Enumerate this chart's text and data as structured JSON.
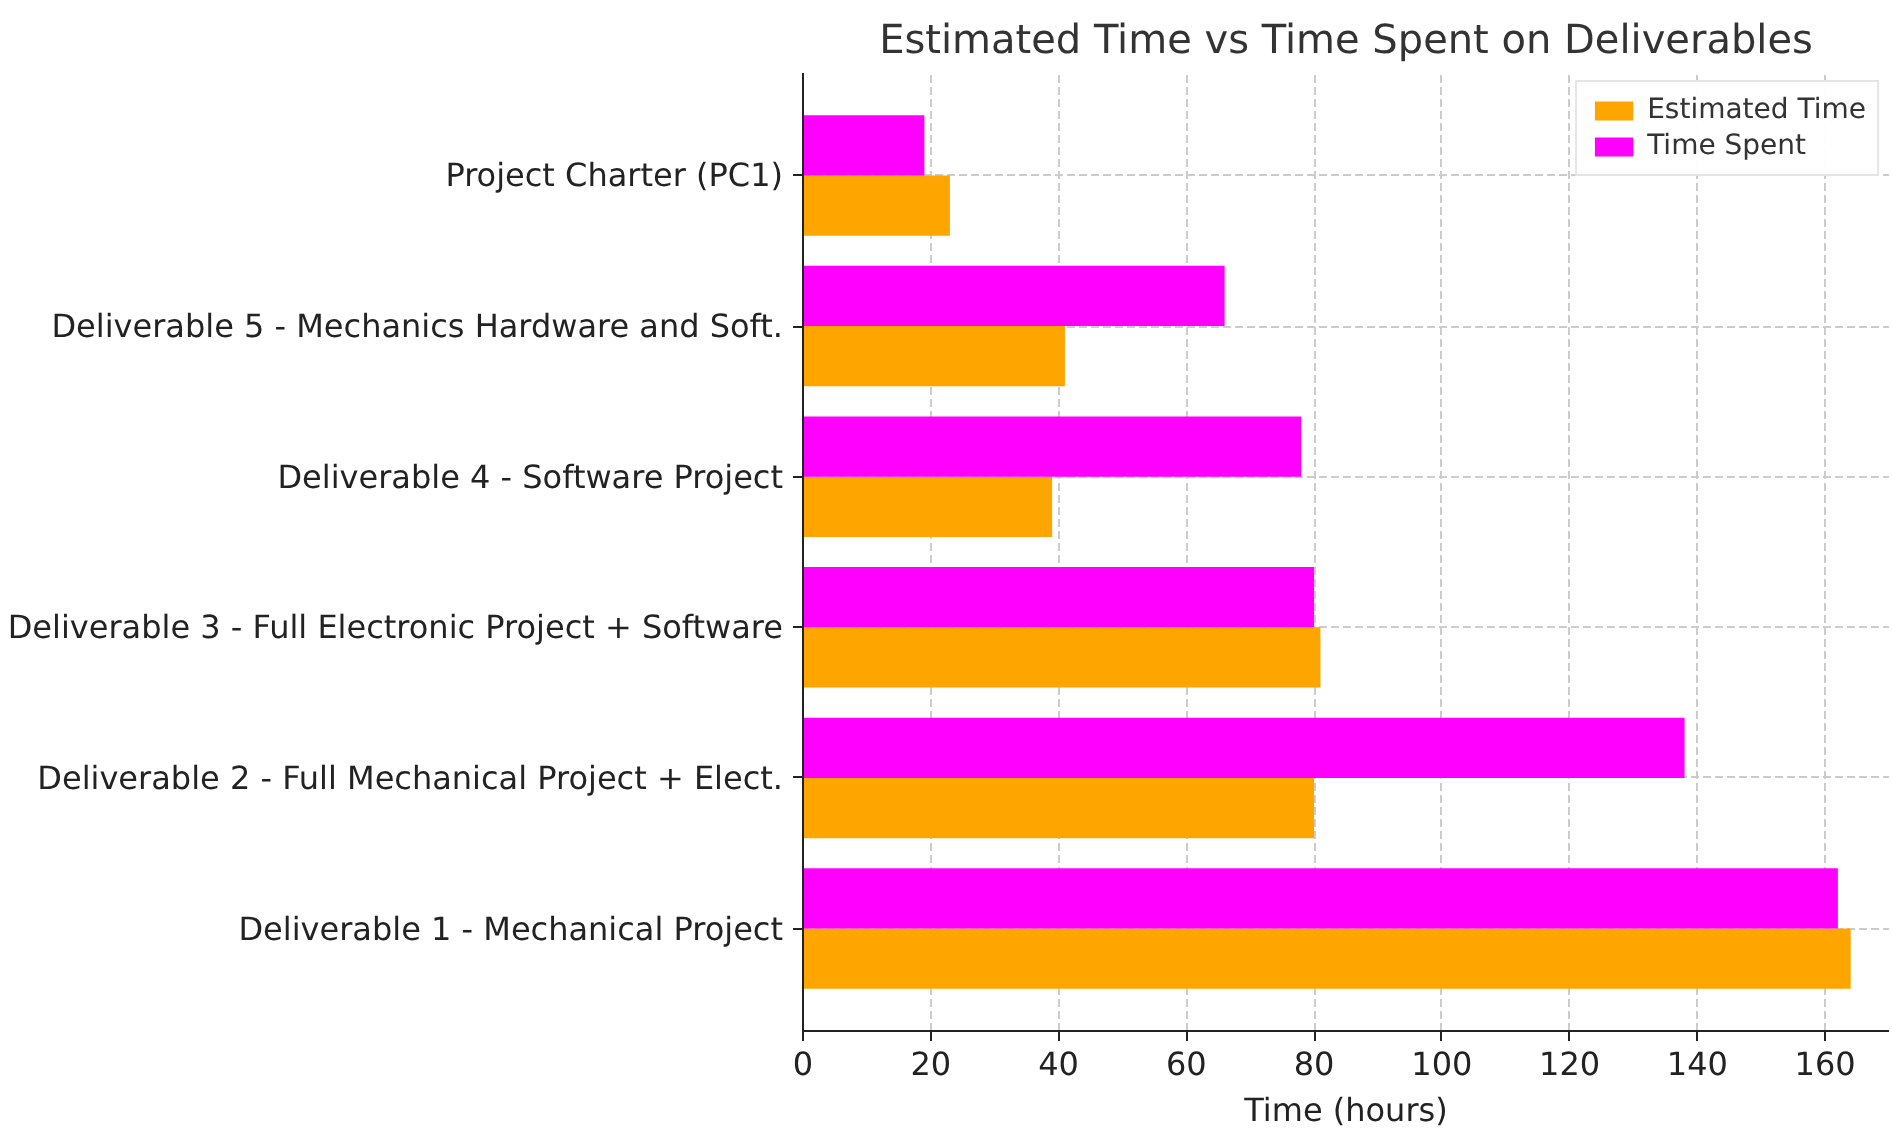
{
  "chart_data": {
    "type": "bar",
    "orientation": "horizontal",
    "title": "Estimated Time vs Time Spent on Deliverables",
    "xlabel": "Time (hours)",
    "categories": [
      "Project Charter (PC1)",
      "Deliverable 5 - Mechanics Hardware and Soft.",
      "Deliverable 4 - Software Project",
      "Deliverable 3 - Full Electronic Project + Software",
      "Deliverable 2 - Full Mechanical Project + Elect.",
      "Deliverable 1 - Mechanical Project"
    ],
    "series": [
      {
        "name": "Estimated Time",
        "color": "#ffa500",
        "values": [
          23,
          41,
          39,
          81,
          80,
          164
        ]
      },
      {
        "name": "Time Spent",
        "color": "#ff00ff",
        "values": [
          19,
          66,
          78,
          80,
          138,
          162
        ]
      }
    ],
    "xlim": [
      0,
      170
    ],
    "xticks": [
      0,
      20,
      40,
      60,
      80,
      100,
      120,
      140,
      160
    ],
    "grid": true,
    "legend": "top right"
  }
}
